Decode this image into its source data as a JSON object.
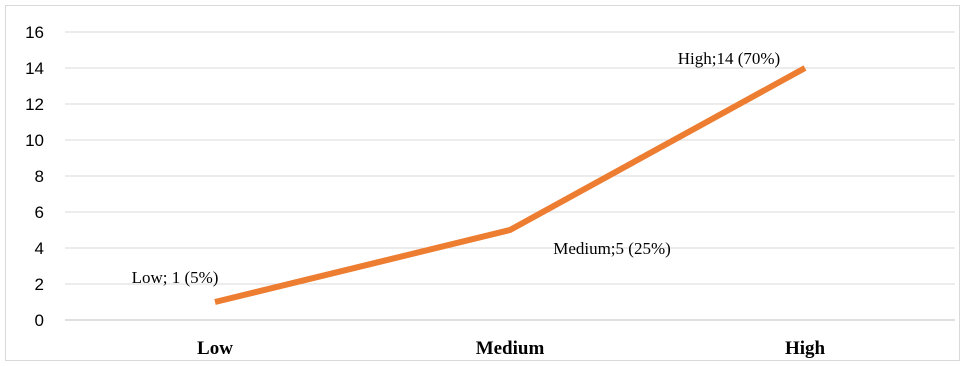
{
  "chart_data": {
    "type": "line",
    "categories": [
      "Low",
      "Medium",
      "High"
    ],
    "series": [
      {
        "values": [
          1,
          5,
          14
        ],
        "color": "#ED7D31"
      }
    ],
    "data_labels": [
      "Low; 1 (5%)",
      "Medium;5 (25%)",
      "High;14 (70%)"
    ],
    "yticks": [
      "0",
      "2",
      "4",
      "6",
      "8",
      "10",
      "12",
      "14",
      "16"
    ],
    "ylim": [
      0,
      16
    ],
    "grid": true,
    "title": "",
    "xlabel": "",
    "ylabel": ""
  }
}
